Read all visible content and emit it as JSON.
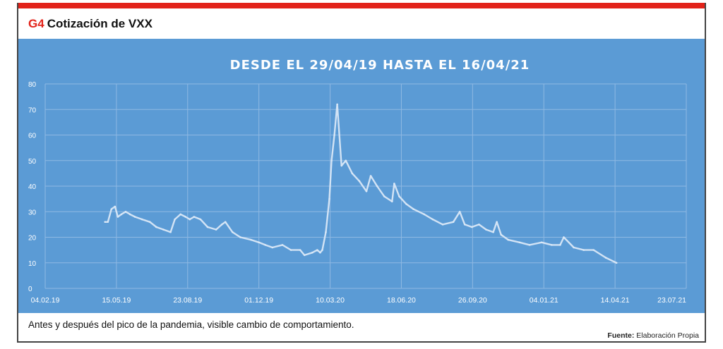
{
  "header": {
    "tag": "G4",
    "title": "Cotización de VXX"
  },
  "caption": "Antes y después del pico de la pandemia, visible cambio de comportamiento.",
  "source": {
    "label": "Fuente:",
    "value": "Elaboración Propia"
  },
  "colors": {
    "accent": "#e2231a",
    "plot_bg": "#5b9bd5",
    "line": "#dce9f7",
    "grid": "#8fb9e3",
    "text": "#ffffff"
  },
  "chart_data": {
    "type": "line",
    "title": "DESDE EL 29/04/19 HASTA EL 16/04/21",
    "xlabel": "",
    "ylabel": "",
    "xlim": [
      "2019-02-04",
      "2021-07-23"
    ],
    "ylim": [
      0,
      80
    ],
    "y_ticks": [
      0,
      10,
      20,
      30,
      40,
      50,
      60,
      70,
      80
    ],
    "x_ticks": [
      "04.02.19",
      "15.05.19",
      "23.08.19",
      "01.12.19",
      "10.03.20",
      "18.06.20",
      "26.09.20",
      "04.01.21",
      "14.04.21",
      "23.07.21"
    ],
    "grid": true,
    "legend": "none",
    "series": [
      {
        "x": [
          "2019-04-29",
          "2019-05-03",
          "2019-05-08",
          "2019-05-13",
          "2019-05-17",
          "2019-05-22",
          "2019-05-28",
          "2019-06-03",
          "2019-06-10",
          "2019-06-20",
          "2019-07-01",
          "2019-07-10",
          "2019-07-20",
          "2019-07-30",
          "2019-08-05",
          "2019-08-13",
          "2019-08-20",
          "2019-08-26",
          "2019-09-01",
          "2019-09-10",
          "2019-09-20",
          "2019-10-02",
          "2019-10-10",
          "2019-10-15",
          "2019-10-25",
          "2019-11-05",
          "2019-11-20",
          "2019-12-01",
          "2019-12-10",
          "2019-12-20",
          "2020-01-03",
          "2020-01-15",
          "2020-01-28",
          "2020-02-03",
          "2020-02-14",
          "2020-02-21",
          "2020-02-25",
          "2020-02-28",
          "2020-03-04",
          "2020-03-09",
          "2020-03-12",
          "2020-03-16",
          "2020-03-20",
          "2020-03-26",
          "2020-04-01",
          "2020-04-10",
          "2020-04-20",
          "2020-04-30",
          "2020-05-06",
          "2020-05-15",
          "2020-05-25",
          "2020-06-05",
          "2020-06-08",
          "2020-06-15",
          "2020-06-25",
          "2020-07-05",
          "2020-07-20",
          "2020-08-01",
          "2020-08-15",
          "2020-08-30",
          "2020-09-08",
          "2020-09-15",
          "2020-09-25",
          "2020-10-05",
          "2020-10-15",
          "2020-10-25",
          "2020-10-30",
          "2020-11-05",
          "2020-11-15",
          "2020-12-01",
          "2020-12-15",
          "2021-01-01",
          "2021-01-15",
          "2021-01-27",
          "2021-02-01",
          "2021-02-15",
          "2021-03-01",
          "2021-03-15",
          "2021-04-01",
          "2021-04-16"
        ],
        "values": [
          26,
          26,
          31,
          32,
          28,
          29,
          30,
          29,
          28,
          27,
          26,
          24,
          23,
          22,
          27,
          29,
          28,
          27,
          28,
          27,
          24,
          23,
          25,
          26,
          22,
          20,
          19,
          18,
          17,
          16,
          17,
          15,
          15,
          13,
          14,
          15,
          14,
          15,
          22,
          35,
          50,
          60,
          72,
          48,
          50,
          45,
          42,
          38,
          44,
          40,
          36,
          34,
          41,
          36,
          33,
          31,
          29,
          27,
          25,
          26,
          30,
          25,
          24,
          25,
          23,
          22,
          26,
          21,
          19,
          18,
          17,
          18,
          17,
          17,
          20,
          16,
          15,
          15,
          12,
          10
        ]
      }
    ]
  }
}
